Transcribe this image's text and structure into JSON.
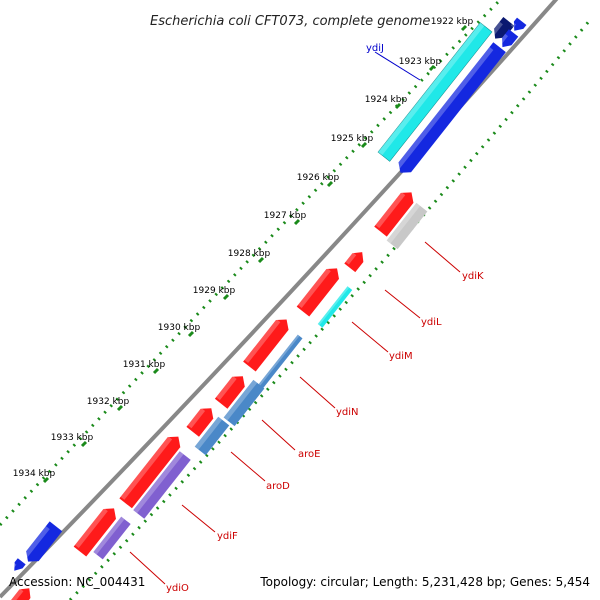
{
  "header": {
    "title": "Escherichia coli CFT073, complete genome"
  },
  "footer": {
    "accession": "Accession: NC_004431",
    "topology": "Topology: circular; Length: 5,231,428 bp; Genes: 5,454"
  },
  "colors": {
    "background": "#ffffff",
    "backbone": "#888888",
    "tick_dots": "#1a8a1a",
    "forward_gene": "#ff1a1a",
    "reverse_gene_blue": "#1428e0",
    "reverse_gene_navy": "#0a1870",
    "cds_cyan": "#20e8e8",
    "cds_steel": "#4a88c8",
    "cds_purple": "#8060d0",
    "cds_gray": "#c8c8c8",
    "label_red": "#cc0000",
    "label_blue": "#0000cc"
  },
  "map": {
    "kbp_ticks": [
      "1922 kbp",
      "1923 kbp",
      "1924 kbp",
      "1925 kbp",
      "1926 kbp",
      "1927 kbp",
      "1928 kbp",
      "1929 kbp",
      "1930 kbp",
      "1931 kbp",
      "1932 kbp",
      "1933 kbp",
      "1934 kbp"
    ],
    "gene_labels": [
      {
        "name": "ydiJ",
        "color": "blue"
      },
      {
        "name": "ydiK",
        "color": "red"
      },
      {
        "name": "ydiL",
        "color": "red"
      },
      {
        "name": "ydiM",
        "color": "red"
      },
      {
        "name": "ydiN",
        "color": "red"
      },
      {
        "name": "aroE",
        "color": "red"
      },
      {
        "name": "aroD",
        "color": "red"
      },
      {
        "name": "ydiF",
        "color": "red"
      },
      {
        "name": "ydiO",
        "color": "red"
      }
    ]
  }
}
